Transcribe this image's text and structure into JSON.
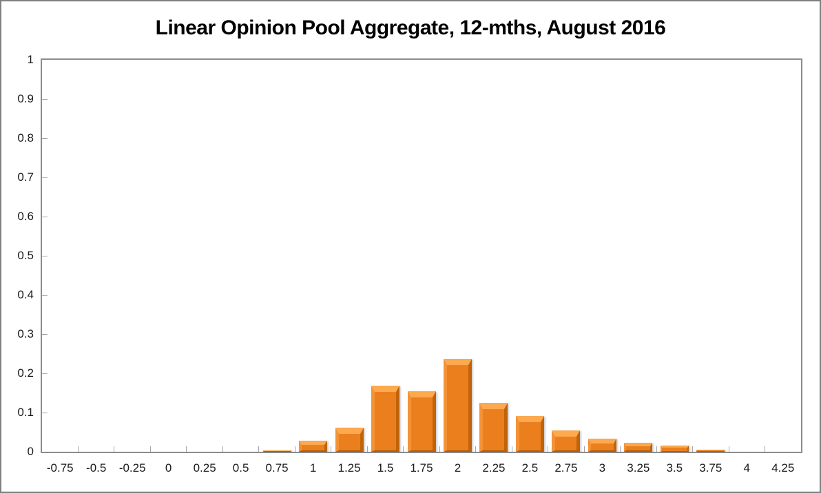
{
  "chart_data": {
    "type": "bar",
    "title": "Linear Opinion Pool Aggregate, 12-mths, August 2016",
    "xlabel": "",
    "ylabel": "",
    "categories": [
      "-0.75",
      "-0.5",
      "-0.25",
      "0",
      "0.25",
      "0.5",
      "0.75",
      "1",
      "1.25",
      "1.5",
      "1.75",
      "2",
      "2.25",
      "2.5",
      "2.75",
      "3",
      "3.25",
      "3.5",
      "3.75",
      "4",
      "4.25"
    ],
    "values": [
      0,
      0,
      0,
      0,
      0,
      0,
      0.004,
      0.028,
      0.062,
      0.168,
      0.154,
      0.236,
      0.125,
      0.091,
      0.054,
      0.033,
      0.022,
      0.016,
      0.005,
      0,
      0
    ],
    "ylim": [
      0,
      1
    ],
    "ytick_step": 0.1,
    "ytick_labels": [
      "0",
      "0.1",
      "0.2",
      "0.3",
      "0.4",
      "0.5",
      "0.6",
      "0.7",
      "0.8",
      "0.9",
      "1"
    ],
    "grid": false,
    "legend": null,
    "colors": {
      "bar_fill": "#ec7f1d",
      "bar_bevel_top": "#fca94f",
      "bar_bevel_left": "#f49236",
      "bar_bevel_right": "#c06309",
      "bar_bevel_bottom": "#af5d08",
      "axis_line": "#8c8c8c",
      "tick": "#a6a6a6",
      "label_text": "#1a1a1a",
      "frame_border": "#7f7f7f"
    }
  }
}
